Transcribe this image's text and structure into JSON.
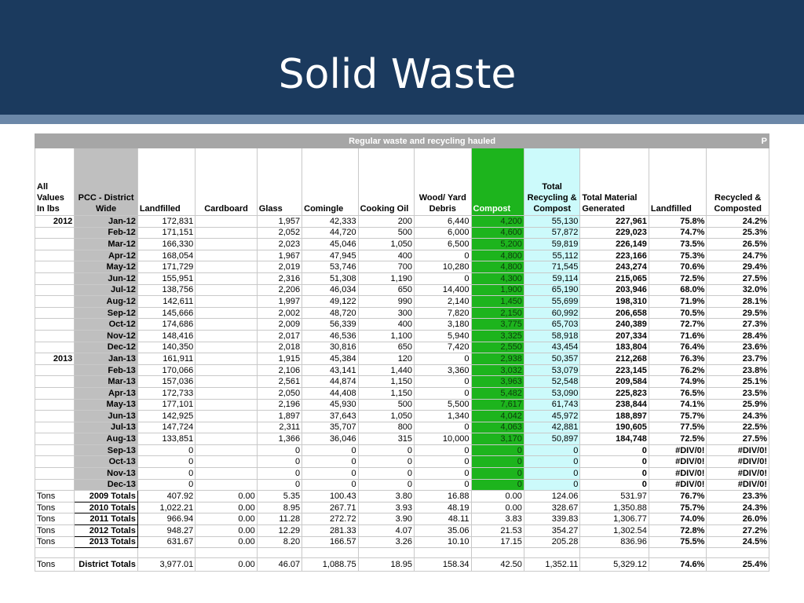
{
  "slide": {
    "title": "Solid Waste"
  },
  "table": {
    "banner": "Regular waste and recycling hauled",
    "banner_right": "P",
    "headers": [
      "All Values In lbs",
      "PCC - District Wide",
      "Landfilled",
      "Cardboard",
      "Glass",
      "Comingle",
      "Cooking Oil",
      "Wood/ Yard Debris",
      "Compost",
      "Total Recycling & Compost",
      "Total Material Generated",
      "Landfilled",
      "Recycled & Composted"
    ],
    "rows": [
      [
        "2012",
        "Jan-12",
        "172,831",
        "",
        "1,957",
        "42,333",
        "200",
        "6,440",
        "4,200",
        "55,130",
        "227,961",
        "75.8%",
        "24.2%"
      ],
      [
        "",
        "Feb-12",
        "171,151",
        "",
        "2,052",
        "44,720",
        "500",
        "6,000",
        "4,600",
        "57,872",
        "229,023",
        "74.7%",
        "25.3%"
      ],
      [
        "",
        "Mar-12",
        "166,330",
        "",
        "2,023",
        "45,046",
        "1,050",
        "6,500",
        "5,200",
        "59,819",
        "226,149",
        "73.5%",
        "26.5%"
      ],
      [
        "",
        "Apr-12",
        "168,054",
        "",
        "1,967",
        "47,945",
        "400",
        "0",
        "4,800",
        "55,112",
        "223,166",
        "75.3%",
        "24.7%"
      ],
      [
        "",
        "May-12",
        "171,729",
        "",
        "2,019",
        "53,746",
        "700",
        "10,280",
        "4,800",
        "71,545",
        "243,274",
        "70.6%",
        "29.4%"
      ],
      [
        "",
        "Jun-12",
        "155,951",
        "",
        "2,316",
        "51,308",
        "1,190",
        "0",
        "4,300",
        "59,114",
        "215,065",
        "72.5%",
        "27.5%"
      ],
      [
        "",
        "Jul-12",
        "138,756",
        "",
        "2,206",
        "46,034",
        "650",
        "14,400",
        "1,900",
        "65,190",
        "203,946",
        "68.0%",
        "32.0%"
      ],
      [
        "",
        "Aug-12",
        "142,611",
        "",
        "1,997",
        "49,122",
        "990",
        "2,140",
        "1,450",
        "55,699",
        "198,310",
        "71.9%",
        "28.1%"
      ],
      [
        "",
        "Sep-12",
        "145,666",
        "",
        "2,002",
        "48,720",
        "300",
        "7,820",
        "2,150",
        "60,992",
        "206,658",
        "70.5%",
        "29.5%"
      ],
      [
        "",
        "Oct-12",
        "174,686",
        "",
        "2,009",
        "56,339",
        "400",
        "3,180",
        "3,775",
        "65,703",
        "240,389",
        "72.7%",
        "27.3%"
      ],
      [
        "",
        "Nov-12",
        "148,416",
        "",
        "2,017",
        "46,536",
        "1,100",
        "5,940",
        "3,325",
        "58,918",
        "207,334",
        "71.6%",
        "28.4%"
      ],
      [
        "",
        "Dec-12",
        "140,350",
        "",
        "2,018",
        "30,816",
        "650",
        "7,420",
        "2,550",
        "43,454",
        "183,804",
        "76.4%",
        "23.6%"
      ],
      [
        "2013",
        "Jan-13",
        "161,911",
        "",
        "1,915",
        "45,384",
        "120",
        "0",
        "2,938",
        "50,357",
        "212,268",
        "76.3%",
        "23.7%"
      ],
      [
        "",
        "Feb-13",
        "170,066",
        "",
        "2,106",
        "43,141",
        "1,440",
        "3,360",
        "3,032",
        "53,079",
        "223,145",
        "76.2%",
        "23.8%"
      ],
      [
        "",
        "Mar-13",
        "157,036",
        "",
        "2,561",
        "44,874",
        "1,150",
        "0",
        "3,963",
        "52,548",
        "209,584",
        "74.9%",
        "25.1%"
      ],
      [
        "",
        "Apr-13",
        "172,733",
        "",
        "2,050",
        "44,408",
        "1,150",
        "0",
        "5,482",
        "53,090",
        "225,823",
        "76.5%",
        "23.5%"
      ],
      [
        "",
        "May-13",
        "177,101",
        "",
        "2,196",
        "45,930",
        "500",
        "5,500",
        "7,617",
        "61,743",
        "238,844",
        "74.1%",
        "25.9%"
      ],
      [
        "",
        "Jun-13",
        "142,925",
        "",
        "1,897",
        "37,643",
        "1,050",
        "1,340",
        "4,042",
        "45,972",
        "188,897",
        "75.7%",
        "24.3%"
      ],
      [
        "",
        "Jul-13",
        "147,724",
        "",
        "2,311",
        "35,707",
        "800",
        "0",
        "4,063",
        "42,881",
        "190,605",
        "77.5%",
        "22.5%"
      ],
      [
        "",
        "Aug-13",
        "133,851",
        "",
        "1,366",
        "36,046",
        "315",
        "10,000",
        "3,170",
        "50,897",
        "184,748",
        "72.5%",
        "27.5%"
      ],
      [
        "",
        "Sep-13",
        "0",
        "",
        "0",
        "0",
        "0",
        "0",
        "0",
        "0",
        "0",
        "#DIV/0!",
        "#DIV/0!"
      ],
      [
        "",
        "Oct-13",
        "0",
        "",
        "0",
        "0",
        "0",
        "0",
        "0",
        "0",
        "0",
        "#DIV/0!",
        "#DIV/0!"
      ],
      [
        "",
        "Nov-13",
        "0",
        "",
        "0",
        "0",
        "0",
        "0",
        "0",
        "0",
        "0",
        "#DIV/0!",
        "#DIV/0!"
      ],
      [
        "",
        "Dec-13",
        "0",
        "",
        "0",
        "0",
        "0",
        "0",
        "0",
        "0",
        "0",
        "#DIV/0!",
        "#DIV/0!"
      ]
    ],
    "totals": [
      [
        "Tons",
        "2009 Totals",
        "407.92",
        "0.00",
        "5.35",
        "100.43",
        "3.80",
        "16.88",
        "0.00",
        "124.06",
        "531.97",
        "76.7%",
        "23.3%"
      ],
      [
        "Tons",
        "2010 Totals",
        "1,022.21",
        "0.00",
        "8.95",
        "267.71",
        "3.93",
        "48.19",
        "0.00",
        "328.67",
        "1,350.88",
        "75.7%",
        "24.3%"
      ],
      [
        "Tons",
        "2011 Totals",
        "966.94",
        "0.00",
        "11.28",
        "272.72",
        "3.90",
        "48.11",
        "3.83",
        "339.83",
        "1,306.77",
        "74.0%",
        "26.0%"
      ],
      [
        "Tons",
        "2012 Totals",
        "948.27",
        "0.00",
        "12.29",
        "281.33",
        "4.07",
        "35.06",
        "21.53",
        "354.27",
        "1,302.54",
        "72.8%",
        "27.2%"
      ],
      [
        "Tons",
        "2013 Totals",
        "631.67",
        "0.00",
        "8.20",
        "166.57",
        "3.26",
        "10.10",
        "17.15",
        "205.28",
        "836.96",
        "75.5%",
        "24.5%"
      ]
    ],
    "district": [
      "Tons",
      "District Totals",
      "3,977.01",
      "0.00",
      "46.07",
      "1,088.75",
      "18.95",
      "158.34",
      "42.50",
      "1,352.11",
      "5,329.12",
      "74.6%",
      "25.4%"
    ]
  }
}
